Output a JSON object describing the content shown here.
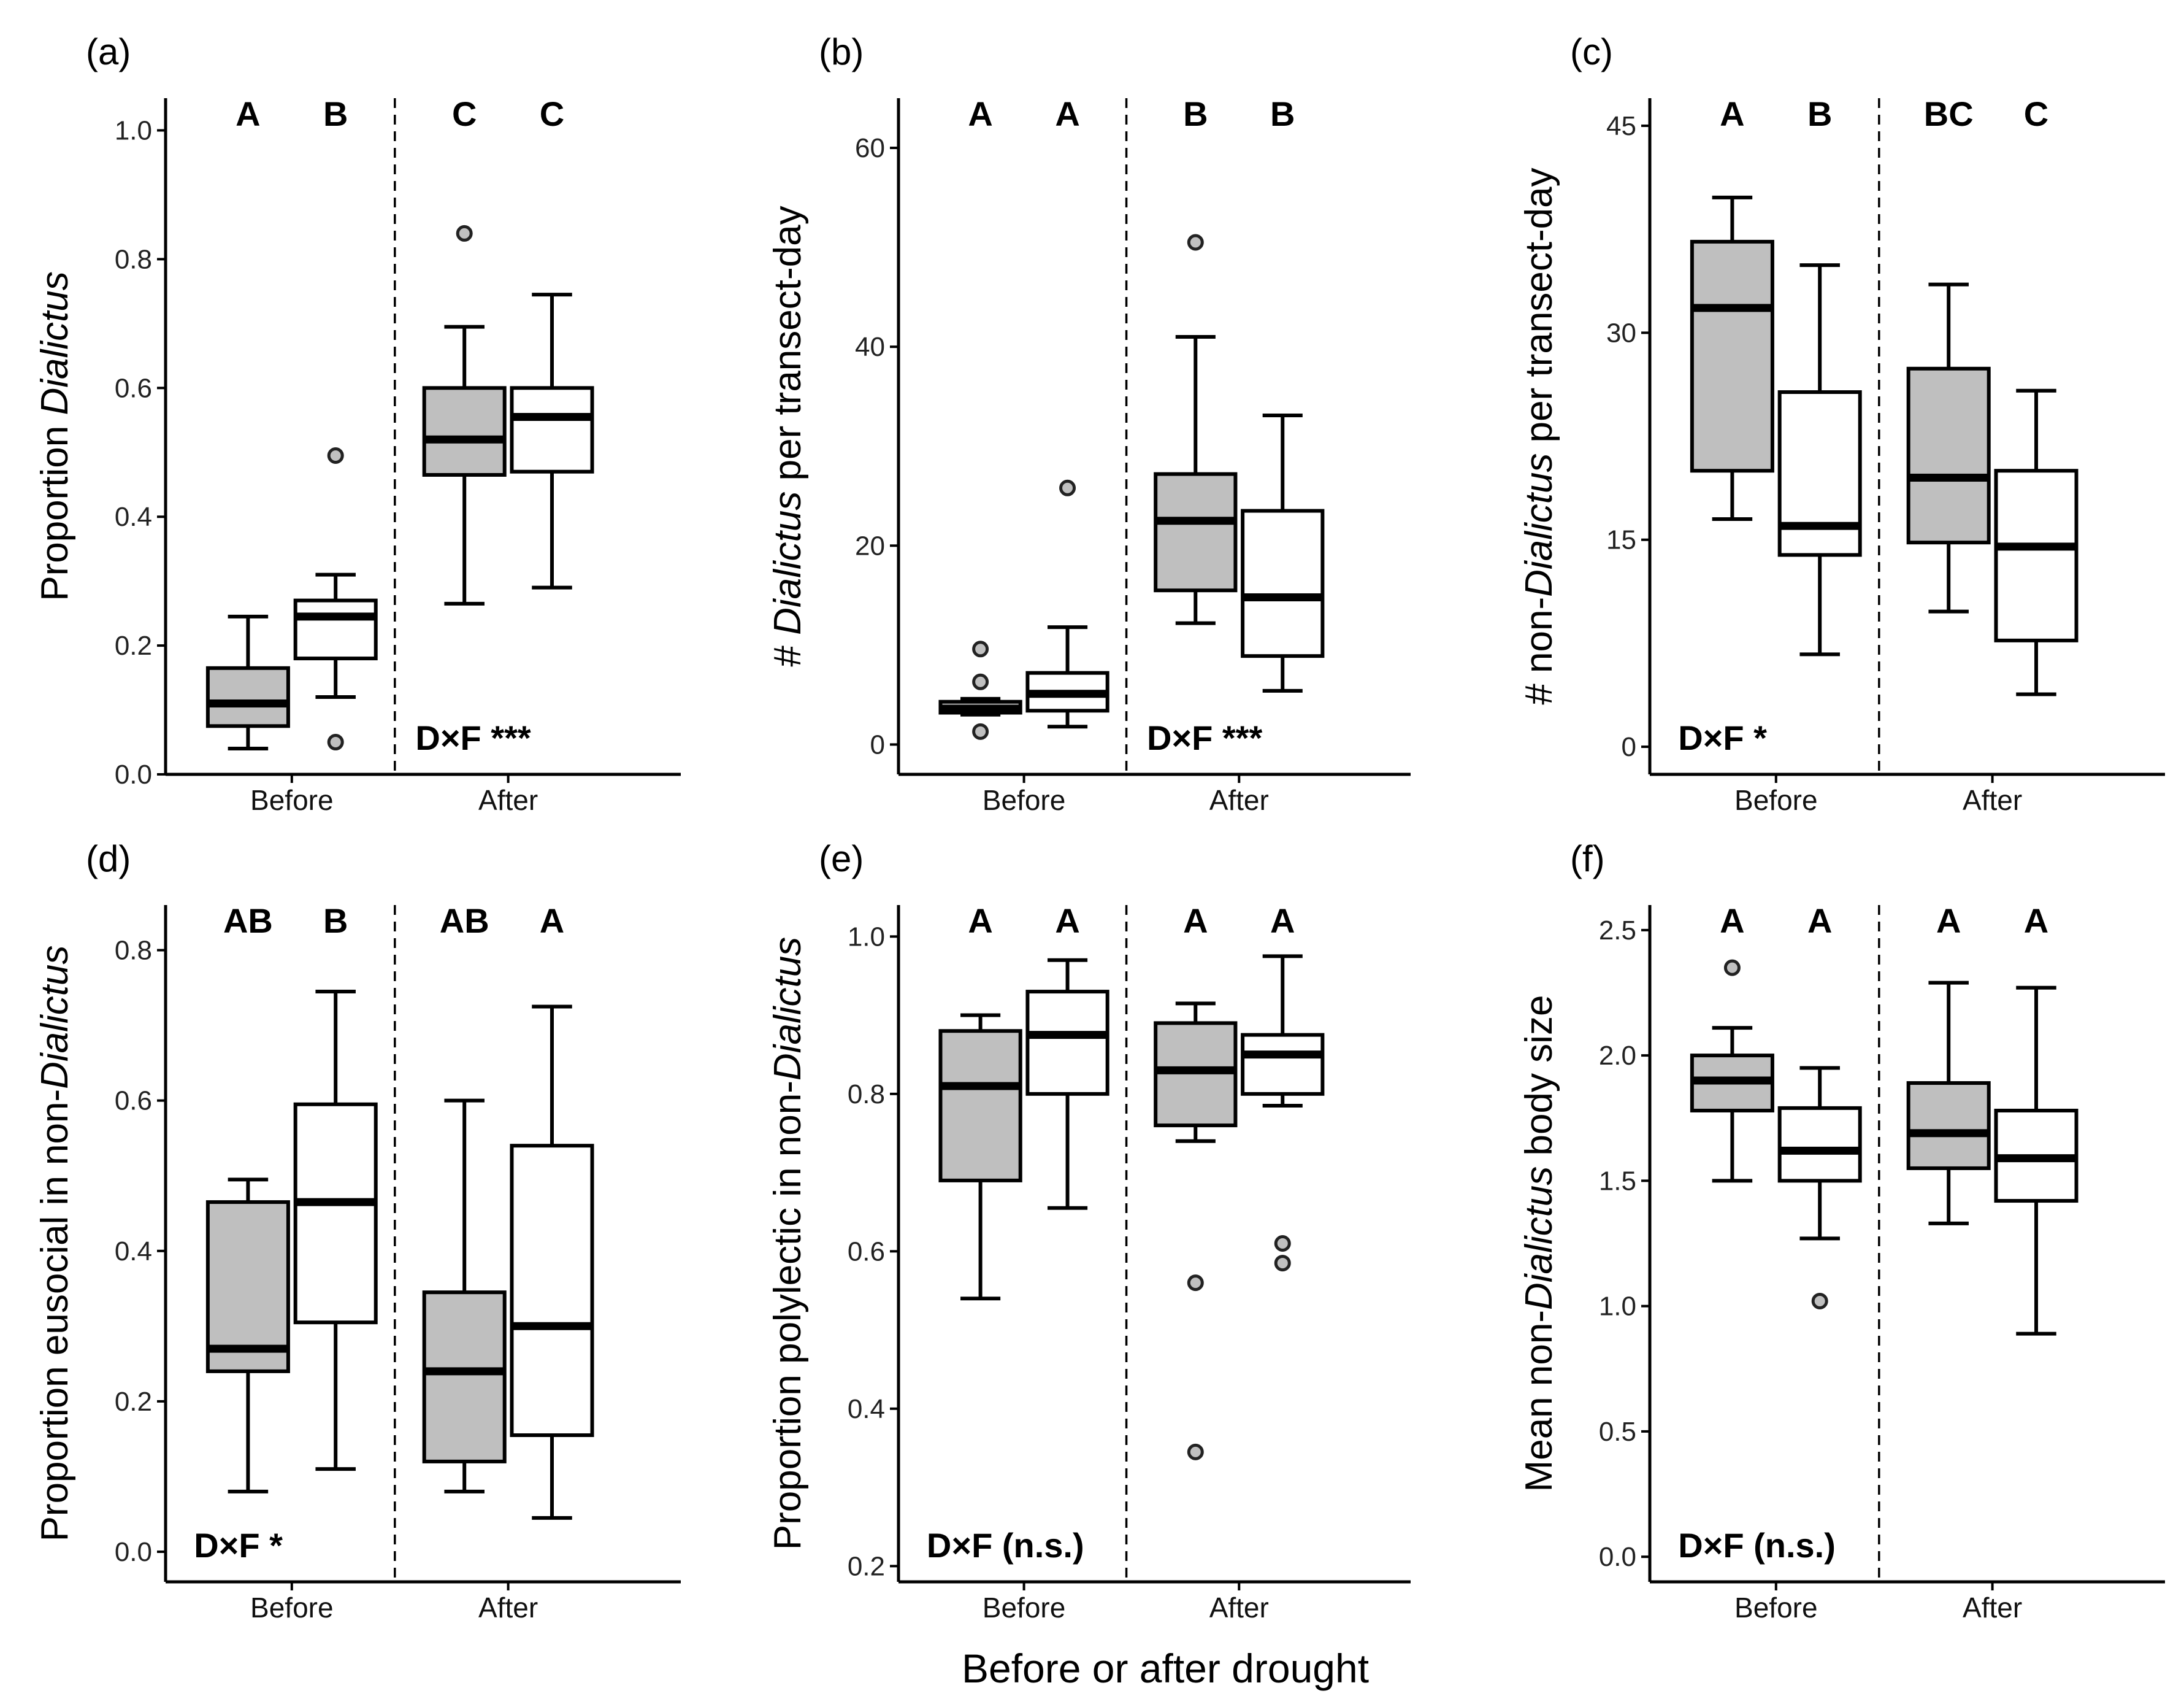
{
  "figure": {
    "x_axis_title": "Before or after drought"
  },
  "chart_data": [
    {
      "type": "boxplot",
      "panel": "(a)",
      "ylabel_parts": [
        {
          "t": "Proportion ",
          "i": false
        },
        {
          "t": "Dialictus",
          "i": true
        }
      ],
      "ylim": [
        0,
        1.05
      ],
      "yticks": [
        "0.0",
        "0.2",
        "0.4",
        "0.6",
        "0.8",
        "1.0"
      ],
      "ytick_values": [
        0,
        0.2,
        0.4,
        0.6,
        0.8,
        1.0
      ],
      "groups": [
        "Before",
        "After"
      ],
      "stat": "D×F ***",
      "stat_pos": "bottom-right",
      "boxes": [
        {
          "group": "Before",
          "fill": "#bfbfbf",
          "letter": "A",
          "min": 0.04,
          "q1": 0.075,
          "median": 0.11,
          "q3": 0.165,
          "max": 0.245,
          "outliers": []
        },
        {
          "group": "Before",
          "fill": "#ffffff",
          "letter": "B",
          "min": 0.12,
          "q1": 0.18,
          "median": 0.245,
          "q3": 0.27,
          "max": 0.31,
          "outliers": [
            0.495,
            0.05
          ]
        },
        {
          "group": "After",
          "fill": "#bfbfbf",
          "letter": "C",
          "min": 0.265,
          "q1": 0.465,
          "median": 0.52,
          "q3": 0.6,
          "max": 0.695,
          "outliers": [
            0.84
          ]
        },
        {
          "group": "After",
          "fill": "#ffffff",
          "letter": "C",
          "min": 0.29,
          "q1": 0.47,
          "median": 0.555,
          "q3": 0.6,
          "max": 0.745,
          "outliers": []
        }
      ]
    },
    {
      "type": "boxplot",
      "panel": "(b)",
      "ylabel_parts": [
        {
          "t": "# ",
          "i": false
        },
        {
          "t": "Dialictus",
          "i": true
        },
        {
          "t": " per transect-day",
          "i": false
        }
      ],
      "ylim": [
        -3,
        65
      ],
      "yticks": [
        "0",
        "20",
        "40",
        "60"
      ],
      "ytick_values": [
        0,
        20,
        40,
        60
      ],
      "groups": [
        "Before",
        "After"
      ],
      "stat": "D×F ***",
      "stat_pos": "bottom-right",
      "boxes": [
        {
          "group": "Before",
          "fill": "#bfbfbf",
          "letter": "A",
          "min": 3.0,
          "q1": 3.2,
          "median": 3.6,
          "q3": 4.3,
          "max": 4.6,
          "outliers": [
            9.6,
            6.3,
            1.3
          ]
        },
        {
          "group": "Before",
          "fill": "#ffffff",
          "letter": "A",
          "min": 1.8,
          "q1": 3.4,
          "median": 5.1,
          "q3": 7.2,
          "max": 11.8,
          "outliers": [
            25.8
          ]
        },
        {
          "group": "After",
          "fill": "#bfbfbf",
          "letter": "B",
          "min": 12.2,
          "q1": 15.5,
          "median": 22.5,
          "q3": 27.2,
          "max": 41.0,
          "outliers": [
            50.5
          ]
        },
        {
          "group": "After",
          "fill": "#ffffff",
          "letter": "B",
          "min": 5.4,
          "q1": 8.9,
          "median": 14.8,
          "q3": 23.5,
          "max": 33.1,
          "outliers": []
        }
      ]
    },
    {
      "type": "boxplot",
      "panel": "(c)",
      "ylabel_parts": [
        {
          "t": "# non-",
          "i": false
        },
        {
          "t": "Dialictus",
          "i": true
        },
        {
          "t": " per transect-day",
          "i": false
        }
      ],
      "ylim": [
        -2,
        47
      ],
      "yticks": [
        "0",
        "15",
        "30",
        "45"
      ],
      "ytick_values": [
        0,
        15,
        30,
        45
      ],
      "groups": [
        "Before",
        "After"
      ],
      "stat": "D×F *",
      "stat_pos": "bottom-left",
      "boxes": [
        {
          "group": "Before",
          "fill": "#bfbfbf",
          "letter": "A",
          "min": 16.5,
          "q1": 20.0,
          "median": 31.8,
          "q3": 36.6,
          "max": 39.8,
          "outliers": []
        },
        {
          "group": "Before",
          "fill": "#ffffff",
          "letter": "B",
          "min": 6.7,
          "q1": 13.9,
          "median": 16.0,
          "q3": 25.7,
          "max": 34.9,
          "outliers": []
        },
        {
          "group": "After",
          "fill": "#bfbfbf",
          "letter": "BC",
          "min": 9.8,
          "q1": 14.8,
          "median": 19.5,
          "q3": 27.4,
          "max": 33.5,
          "outliers": []
        },
        {
          "group": "After",
          "fill": "#ffffff",
          "letter": "C",
          "min": 3.8,
          "q1": 7.7,
          "median": 14.5,
          "q3": 20.0,
          "max": 25.8,
          "outliers": []
        }
      ]
    },
    {
      "type": "boxplot",
      "panel": "(d)",
      "ylabel_parts": [
        {
          "t": "Proportion eusocial in non-",
          "i": false
        },
        {
          "t": "Dialictus",
          "i": true
        }
      ],
      "ylim": [
        -0.04,
        0.86
      ],
      "yticks": [
        "0.0",
        "0.2",
        "0.4",
        "0.6",
        "0.8"
      ],
      "ytick_values": [
        0,
        0.2,
        0.4,
        0.6,
        0.8
      ],
      "groups": [
        "Before",
        "After"
      ],
      "stat": "D×F *",
      "stat_pos": "bottom-left",
      "boxes": [
        {
          "group": "Before",
          "fill": "#bfbfbf",
          "letter": "AB",
          "min": 0.08,
          "q1": 0.24,
          "median": 0.27,
          "q3": 0.465,
          "max": 0.495,
          "outliers": []
        },
        {
          "group": "Before",
          "fill": "#ffffff",
          "letter": "B",
          "min": 0.11,
          "q1": 0.305,
          "median": 0.465,
          "q3": 0.595,
          "max": 0.745,
          "outliers": []
        },
        {
          "group": "After",
          "fill": "#bfbfbf",
          "letter": "AB",
          "min": 0.08,
          "q1": 0.12,
          "median": 0.24,
          "q3": 0.345,
          "max": 0.6,
          "outliers": []
        },
        {
          "group": "After",
          "fill": "#ffffff",
          "letter": "A",
          "min": 0.045,
          "q1": 0.155,
          "median": 0.3,
          "q3": 0.54,
          "max": 0.725,
          "outliers": []
        }
      ]
    },
    {
      "type": "boxplot",
      "panel": "(e)",
      "ylabel_parts": [
        {
          "t": "Proportion polylectic  in non-",
          "i": false
        },
        {
          "t": "Dialictus",
          "i": true
        }
      ],
      "ylim": [
        0.18,
        1.04
      ],
      "yticks": [
        "0.2",
        "0.4",
        "0.6",
        "0.8",
        "1.0"
      ],
      "ytick_values": [
        0.2,
        0.4,
        0.6,
        0.8,
        1.0
      ],
      "groups": [
        "Before",
        "After"
      ],
      "stat": "D×F (n.s.)",
      "stat_pos": "bottom-left",
      "boxes": [
        {
          "group": "Before",
          "fill": "#bfbfbf",
          "letter": "A",
          "min": 0.54,
          "q1": 0.69,
          "median": 0.81,
          "q3": 0.88,
          "max": 0.9,
          "outliers": []
        },
        {
          "group": "Before",
          "fill": "#ffffff",
          "letter": "A",
          "min": 0.655,
          "q1": 0.8,
          "median": 0.875,
          "q3": 0.93,
          "max": 0.97,
          "outliers": []
        },
        {
          "group": "After",
          "fill": "#bfbfbf",
          "letter": "A",
          "min": 0.74,
          "q1": 0.76,
          "median": 0.83,
          "q3": 0.89,
          "max": 0.915,
          "outliers": [
            0.56,
            0.345
          ]
        },
        {
          "group": "After",
          "fill": "#ffffff",
          "letter": "A",
          "min": 0.785,
          "q1": 0.8,
          "median": 0.85,
          "q3": 0.875,
          "max": 0.975,
          "outliers": [
            0.61,
            0.585
          ]
        }
      ]
    },
    {
      "type": "boxplot",
      "panel": "(f)",
      "ylabel_parts": [
        {
          "t": "Mean non-",
          "i": false
        },
        {
          "t": "Dialictus",
          "i": true
        },
        {
          "t": " body size",
          "i": false
        }
      ],
      "ylim": [
        -0.1,
        2.6
      ],
      "yticks": [
        "0.0",
        "0.5",
        "1.0",
        "1.5",
        "2.0",
        "2.5"
      ],
      "ytick_values": [
        0,
        0.5,
        1.0,
        1.5,
        2.0,
        2.5
      ],
      "groups": [
        "Before",
        "After"
      ],
      "stat": "D×F (n.s.)",
      "stat_pos": "bottom-left",
      "boxes": [
        {
          "group": "Before",
          "fill": "#bfbfbf",
          "letter": "A",
          "min": 1.5,
          "q1": 1.78,
          "median": 1.9,
          "q3": 2.0,
          "max": 2.11,
          "outliers": [
            2.35
          ]
        },
        {
          "group": "Before",
          "fill": "#ffffff",
          "letter": "A",
          "min": 1.27,
          "q1": 1.5,
          "median": 1.62,
          "q3": 1.79,
          "max": 1.95,
          "outliers": [
            1.02
          ]
        },
        {
          "group": "After",
          "fill": "#bfbfbf",
          "letter": "A",
          "min": 1.33,
          "q1": 1.55,
          "median": 1.69,
          "q3": 1.89,
          "max": 2.29,
          "outliers": []
        },
        {
          "group": "After",
          "fill": "#ffffff",
          "letter": "A",
          "min": 0.89,
          "q1": 1.42,
          "median": 1.59,
          "q3": 1.78,
          "max": 2.27,
          "outliers": []
        }
      ]
    }
  ]
}
